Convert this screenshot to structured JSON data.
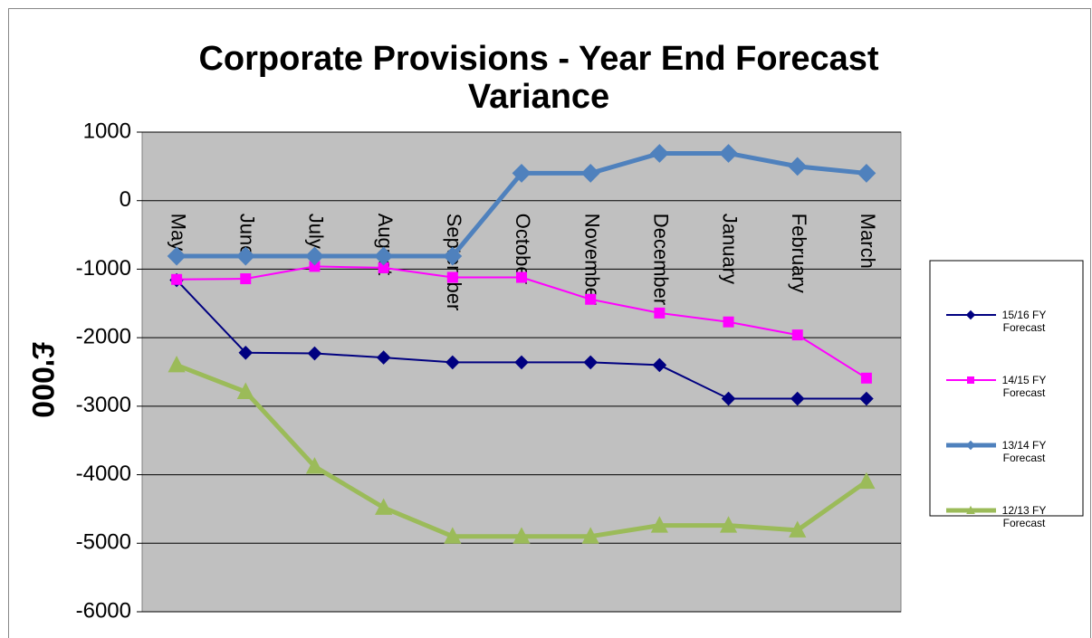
{
  "chart_data": {
    "type": "line",
    "title": "Corporate Provisions - Year End Forecast Variance",
    "y_label": "£'000",
    "categories": [
      "May",
      "June",
      "July",
      "August",
      "September",
      "October",
      "November",
      "December",
      "January",
      "February",
      "March"
    ],
    "series": [
      {
        "name": "15/16 FY Forecast",
        "color": "#000080",
        "marker": "diamond",
        "values": [
          -1160,
          -2220,
          -2230,
          -2290,
          -2360,
          -2360,
          -2360,
          -2400,
          -2890,
          -2890,
          -2890
        ]
      },
      {
        "name": "14/15 FY Forecast",
        "color": "#ff00ff",
        "marker": "square",
        "values": [
          -1150,
          -1140,
          -960,
          -980,
          -1120,
          -1120,
          -1440,
          -1640,
          -1770,
          -1960,
          -2590
        ]
      },
      {
        "name": "13/14 FY Forecast",
        "color": "#4f81bd",
        "marker": "diamond",
        "values": [
          -810,
          -810,
          -810,
          -810,
          -810,
          400,
          400,
          690,
          690,
          500,
          400
        ]
      },
      {
        "name": "12/13 FY Forecast",
        "color": "#9bbb59",
        "marker": "triangle",
        "values": [
          -2400,
          -2790,
          -3880,
          -4480,
          -4900,
          -4900,
          -4900,
          -4740,
          -4740,
          -4810,
          -4100
        ]
      }
    ],
    "ylim": [
      -6000,
      1000
    ],
    "yticks": [
      -6000,
      -5000,
      -4000,
      -3000,
      -2000,
      -1000,
      0,
      1000
    ],
    "grid": true,
    "legend": "right"
  }
}
